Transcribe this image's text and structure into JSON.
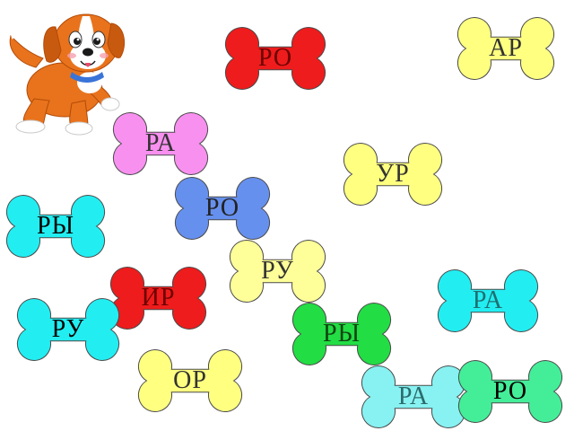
{
  "mascot": {
    "icon": "puppy-icon"
  },
  "bones": [
    {
      "label": "РО",
      "color": "#ee1c1c",
      "text_color": "#6b0000"
    },
    {
      "label": "АР",
      "color": "#ffff80",
      "text_color": "#333333"
    },
    {
      "label": "РА",
      "color": "#f890f0",
      "text_color": "#333333"
    },
    {
      "label": "УР",
      "color": "#ffff80",
      "text_color": "#333333"
    },
    {
      "label": "РЫ",
      "color": "#22eef2",
      "text_color": "#000000"
    },
    {
      "label": "РО",
      "color": "#6690ee",
      "text_color": "#222222"
    },
    {
      "label": "РУ",
      "color": "#ffff99",
      "text_color": "#333333"
    },
    {
      "label": "ИР",
      "color": "#ee1c1c",
      "text_color": "#6b0000"
    },
    {
      "label": "РА",
      "color": "#22eef2",
      "text_color": "#1f6f70"
    },
    {
      "label": "РУ",
      "color": "#22eef2",
      "text_color": "#000000"
    },
    {
      "label": "РЫ",
      "color": "#22dd44",
      "text_color": "#114411"
    },
    {
      "label": "ОР",
      "color": "#ffff80",
      "text_color": "#333333"
    },
    {
      "label": "РА",
      "color": "#88f2f2",
      "text_color": "#2c6b6b"
    },
    {
      "label": "РО",
      "color": "#44ee99",
      "text_color": "#000000"
    }
  ]
}
